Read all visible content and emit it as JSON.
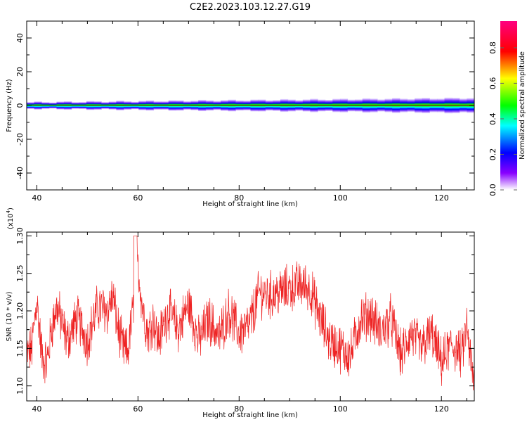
{
  "title": "C2E2.2023.103.12.27.G19",
  "chart_data": [
    {
      "type": "heatmap",
      "name": "spectrogram",
      "xlabel": "Height of straight line (km)",
      "ylabel": "Frequency (Hz)",
      "xlim": [
        38,
        126.5
      ],
      "ylim": [
        -50,
        50
      ],
      "xticks": [
        40,
        60,
        80,
        100,
        120
      ],
      "yticks": [
        -40,
        -20,
        0,
        20,
        40
      ],
      "ytick_labels": [
        "-40",
        "-20",
        "0",
        "20",
        "40"
      ],
      "band_center_hz": 0,
      "band_halfwidth_hz_start": 2,
      "band_halfwidth_hz_end": 4.5,
      "colorbar": {
        "label": "Normalized spectral amplitude",
        "range": [
          0,
          0.95
        ],
        "ticks": [
          0.0,
          0.2,
          0.4,
          0.6,
          0.8
        ],
        "tick_labels": [
          "0.0",
          "0.2",
          "0.4",
          "0.6",
          "0.8"
        ],
        "colors": [
          "#ffffff",
          "#8800ff",
          "#0000ff",
          "#00ffff",
          "#00ff00",
          "#ffff00",
          "#ff0000",
          "#ff0080"
        ]
      }
    },
    {
      "type": "line",
      "name": "snr",
      "xlabel": "Height of straight line (km)",
      "ylabel": "SNR (10 * v/v)",
      "scale_label": "(x10",
      "scale_exponent": "4",
      "scale_close": ")",
      "xlim": [
        38,
        126.5
      ],
      "ylim": [
        1.08,
        1.305
      ],
      "xticks": [
        40,
        60,
        80,
        100,
        120
      ],
      "yticks": [
        1.1,
        1.15,
        1.2,
        1.25,
        1.3
      ],
      "ytick_labels": [
        "1.10",
        "1.15",
        "1.20",
        "1.25",
        "1.30"
      ],
      "color": "#ee2222",
      "trend": {
        "x": [
          38,
          39,
          40,
          41,
          42,
          43,
          44,
          46,
          48,
          50,
          52,
          54,
          55,
          56,
          57,
          58,
          59,
          60,
          61,
          62,
          63,
          64,
          66,
          68,
          70,
          72,
          74,
          76,
          78,
          80,
          82,
          84,
          86,
          88,
          90,
          92,
          94,
          96,
          98,
          100,
          102,
          104,
          106,
          108,
          110,
          112,
          114,
          116,
          118,
          120,
          122,
          124,
          125,
          126,
          126.5
        ],
        "y": [
          1.14,
          1.15,
          1.215,
          1.14,
          1.13,
          1.18,
          1.205,
          1.16,
          1.19,
          1.16,
          1.205,
          1.2,
          1.22,
          1.18,
          1.15,
          1.145,
          1.2,
          1.26,
          1.2,
          1.17,
          1.19,
          1.16,
          1.2,
          1.175,
          1.21,
          1.16,
          1.19,
          1.165,
          1.2,
          1.17,
          1.18,
          1.225,
          1.22,
          1.225,
          1.23,
          1.235,
          1.23,
          1.19,
          1.16,
          1.15,
          1.14,
          1.19,
          1.195,
          1.17,
          1.19,
          1.14,
          1.17,
          1.15,
          1.17,
          1.13,
          1.155,
          1.14,
          1.18,
          1.12,
          1.1
        ]
      }
    }
  ]
}
